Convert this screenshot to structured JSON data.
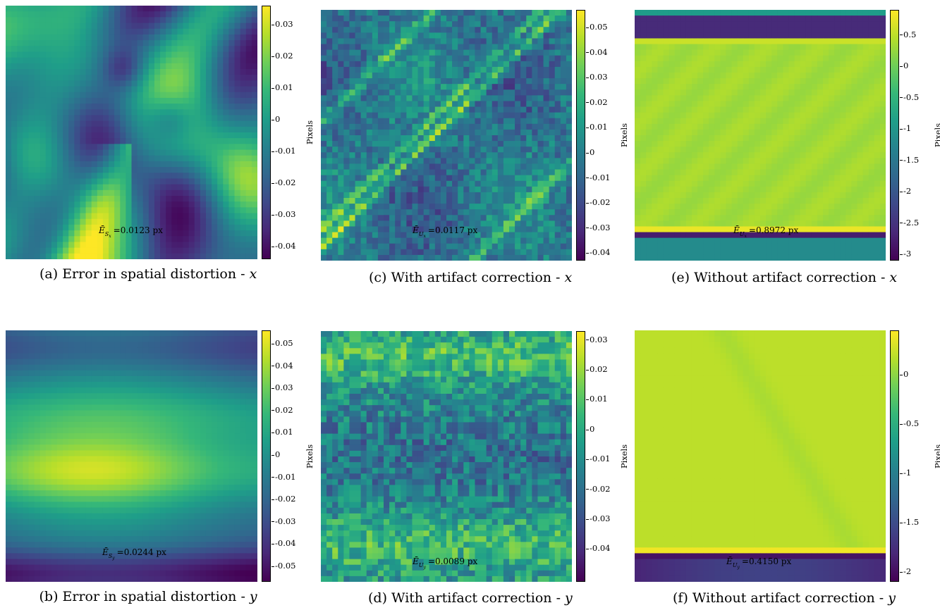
{
  "colormap": [
    "#440154",
    "#482878",
    "#3e4989",
    "#31688e",
    "#26828e",
    "#1f9e89",
    "#35b779",
    "#6ece58",
    "#b5de2b",
    "#fde725"
  ],
  "chart_data": [
    {
      "id": "a",
      "type": "heatmap",
      "caption_prefix": "(a) Error in spatial distortion - ",
      "caption_var": "x",
      "colorbar_label": "Pixels",
      "colorbar_ticks": [
        "0.03",
        "0.02",
        "0.01",
        "0",
        "-0.01",
        "-0.02",
        "-0.03",
        "-0.04"
      ],
      "colorbar_tick_values": [
        0.03,
        0.02,
        0.01,
        0,
        -0.01,
        -0.02,
        -0.03,
        -0.04
      ],
      "vmin": -0.044,
      "vmax": 0.036,
      "annotation_symbol": "Ē",
      "annotation_sub": "S",
      "annotation_subsub": "x",
      "annotation_value": "=0.0123 px",
      "pattern": "swirl"
    },
    {
      "id": "c",
      "type": "heatmap",
      "caption_prefix": "(c) With artifact correction - ",
      "caption_var": "x",
      "colorbar_label": "Pixels",
      "colorbar_ticks": [
        "0.05",
        "0.04",
        "0.03",
        "0.02",
        "0.01",
        "0",
        "-0.01",
        "-0.02",
        "-0.03",
        "-0.04"
      ],
      "colorbar_tick_values": [
        0.05,
        0.04,
        0.03,
        0.02,
        0.01,
        0,
        -0.01,
        -0.02,
        -0.03,
        -0.04
      ],
      "vmin": -0.043,
      "vmax": 0.057,
      "annotation_symbol": "Ē",
      "annotation_sub": "U",
      "annotation_subsub": "x",
      "annotation_value": "=0.0117 px",
      "pattern": "diag-noise"
    },
    {
      "id": "e",
      "type": "heatmap",
      "caption_prefix": "(e) Without artifact correction - ",
      "caption_var": "x",
      "colorbar_label": "Pixels",
      "colorbar_ticks": [
        "0.5",
        "0",
        "-0.5",
        "-1",
        "-1.5",
        "-2",
        "-2.5",
        "-3"
      ],
      "colorbar_tick_values": [
        0.5,
        0,
        -0.5,
        -1,
        -1.5,
        -2,
        -2.5,
        -3
      ],
      "vmin": -3.1,
      "vmax": 0.9,
      "annotation_symbol": "Ē",
      "annotation_sub": "U",
      "annotation_subsub": "x",
      "annotation_value": "=0.8972 px",
      "pattern": "bands-x"
    },
    {
      "id": "b",
      "type": "heatmap",
      "caption_prefix": "(b) Error in spatial distortion - ",
      "caption_var": "y",
      "colorbar_label": "Pixels",
      "colorbar_ticks": [
        "0.05",
        "0.04",
        "0.03",
        "0.02",
        "0.01",
        "0",
        "-0.01",
        "-0.02",
        "-0.03",
        "-0.04",
        "-0.05"
      ],
      "colorbar_tick_values": [
        0.05,
        0.04,
        0.03,
        0.02,
        0.01,
        0,
        -0.01,
        -0.02,
        -0.03,
        -0.04,
        -0.05
      ],
      "vmin": -0.057,
      "vmax": 0.056,
      "annotation_symbol": "Ē",
      "annotation_sub": "S",
      "annotation_subsub": "y",
      "annotation_value": "=0.0244 px",
      "pattern": "horizontal"
    },
    {
      "id": "d",
      "type": "heatmap",
      "caption_prefix": "(d) With artifact correction - ",
      "caption_var": "y",
      "colorbar_label": "Pixels",
      "colorbar_ticks": [
        "0.03",
        "0.02",
        "0.01",
        "0",
        "-0.01",
        "-0.02",
        "-0.03",
        "-0.04"
      ],
      "colorbar_tick_values": [
        0.03,
        0.02,
        0.01,
        0,
        -0.01,
        -0.02,
        -0.03,
        -0.04
      ],
      "vmin": -0.051,
      "vmax": 0.033,
      "annotation_symbol": "Ē",
      "annotation_sub": "U",
      "annotation_subsub": "y",
      "annotation_value": "=0.0089 px",
      "pattern": "grid-noise"
    },
    {
      "id": "f",
      "type": "heatmap",
      "caption_prefix": "(f) Without artifact correction - ",
      "caption_var": "y",
      "colorbar_label": "Pixels",
      "colorbar_ticks": [
        "0",
        "-0.5",
        "-1",
        "-1.5",
        "-2"
      ],
      "colorbar_tick_values": [
        0,
        -0.5,
        -1,
        -1.5,
        -2
      ],
      "vmin": -2.1,
      "vmax": 0.45,
      "annotation_symbol": "Ē",
      "annotation_sub": "U",
      "annotation_subsub": "y",
      "annotation_value": "=0.4150 px",
      "pattern": "bands-y"
    }
  ]
}
